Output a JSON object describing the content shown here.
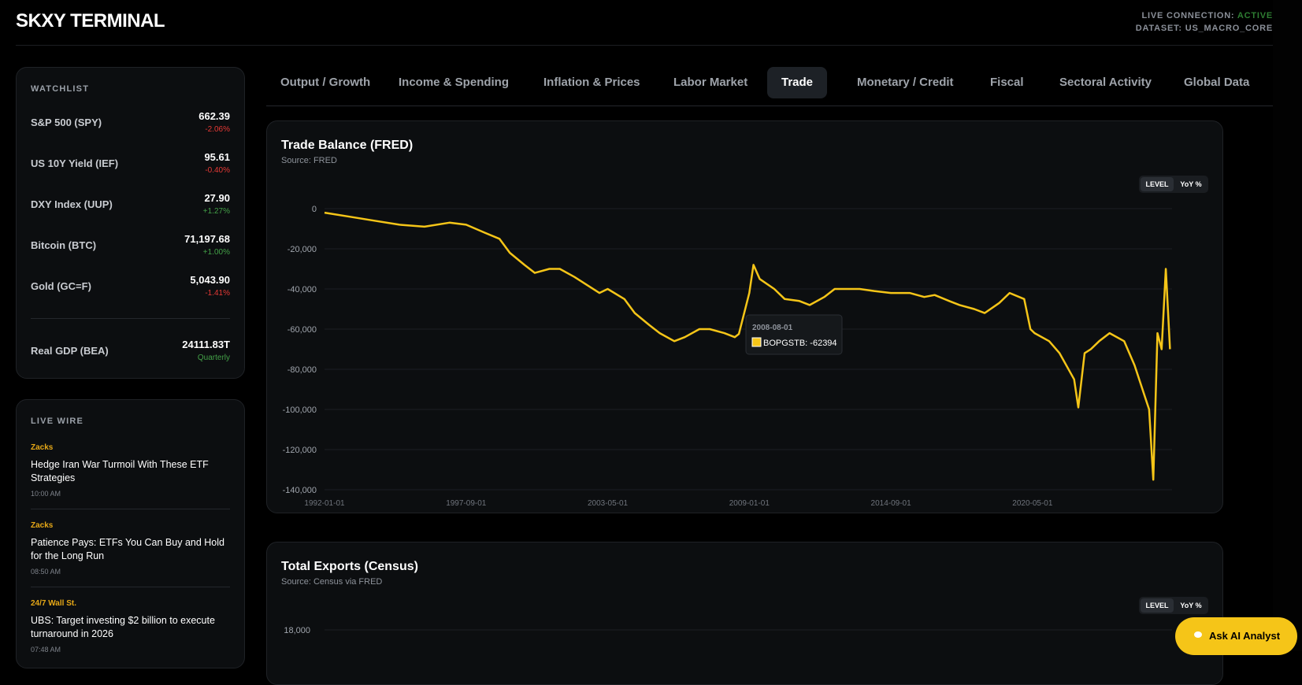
{
  "header": {
    "brand": "SKXY TERMINAL",
    "connection_label": "LIVE CONNECTION:",
    "connection_status": "ACTIVE",
    "dataset": "DATASET: US_MACRO_CORE"
  },
  "watchlist": {
    "title": "WATCHLIST",
    "items": [
      {
        "name": "S&P 500 (SPY)",
        "price": "662.39",
        "change": "-2.06%",
        "dir": "neg"
      },
      {
        "name": "US 10Y Yield (IEF)",
        "price": "95.61",
        "change": "-0.40%",
        "dir": "neg"
      },
      {
        "name": "DXY Index (UUP)",
        "price": "27.90",
        "change": "+1.27%",
        "dir": "pos"
      },
      {
        "name": "Bitcoin (BTC)",
        "price": "71,197.68",
        "change": "+1.00%",
        "dir": "pos"
      },
      {
        "name": "Gold (GC=F)",
        "price": "5,043.90",
        "change": "-1.41%",
        "dir": "neg"
      }
    ],
    "gdp": {
      "name": "Real GDP (BEA)",
      "value": "24111.83T",
      "freq": "Quarterly"
    }
  },
  "livewire": {
    "title": "LIVE WIRE",
    "items": [
      {
        "source": "Zacks",
        "headline": "Hedge Iran War Turmoil With These ETF Strategies",
        "time": "10:00 AM"
      },
      {
        "source": "Zacks",
        "headline": "Patience Pays: ETFs You Can Buy and Hold for the Long Run",
        "time": "08:50 AM"
      },
      {
        "source": "24/7 Wall St.",
        "headline": "UBS: Target investing $2 billion to execute turnaround in 2026",
        "time": "07:48 AM"
      }
    ]
  },
  "tabs": [
    {
      "label": "Output / Growth"
    },
    {
      "label": "Income & Spending"
    },
    {
      "label": "Inflation & Prices"
    },
    {
      "label": "Labor Market"
    },
    {
      "label": "Trade",
      "active": true
    },
    {
      "label": "Monetary / Credit"
    },
    {
      "label": "Fiscal"
    },
    {
      "label": "Sectoral Activity"
    },
    {
      "label": "Global Data"
    }
  ],
  "cards": {
    "trade_balance": {
      "title": "Trade Balance (FRED)",
      "source": "Source: FRED",
      "toggle_level": "LEVEL",
      "toggle_yoy": "YoY %"
    },
    "total_exports": {
      "title": "Total Exports (Census)",
      "source": "Source: Census via FRED",
      "toggle_level": "LEVEL",
      "toggle_yoy": "YoY %"
    }
  },
  "tooltip": {
    "date": "2008-08-01",
    "series": "BOPGSTB",
    "value": "-62394"
  },
  "chart_data": [
    {
      "type": "line",
      "title": "Trade Balance (FRED)",
      "series": [
        {
          "name": "BOPGSTB",
          "color": "#f5c518",
          "x": [
            "1992-01",
            "1993-01",
            "1994-01",
            "1995-01",
            "1996-01",
            "1997-01",
            "1997-09",
            "1998-06",
            "1999-01",
            "1999-06",
            "2000-01",
            "2000-06",
            "2001-01",
            "2001-06",
            "2002-01",
            "2003-01",
            "2003-05",
            "2004-01",
            "2004-06",
            "2005-01",
            "2005-06",
            "2006-01",
            "2006-06",
            "2007-01",
            "2007-06",
            "2008-01",
            "2008-06",
            "2008-08",
            "2009-01",
            "2009-03",
            "2009-06",
            "2010-01",
            "2010-06",
            "2011-01",
            "2011-06",
            "2012-01",
            "2012-06",
            "2013-01",
            "2013-06",
            "2014-01",
            "2014-09",
            "2015-06",
            "2016-01",
            "2016-06",
            "2017-01",
            "2017-06",
            "2018-01",
            "2018-06",
            "2019-01",
            "2019-06",
            "2020-01",
            "2020-04",
            "2020-06",
            "2021-01",
            "2021-06",
            "2022-01",
            "2022-03",
            "2022-06",
            "2022-09",
            "2023-01",
            "2023-06",
            "2024-01",
            "2024-06",
            "2025-01",
            "2025-03",
            "2025-05",
            "2025-07",
            "2025-09",
            "2025-11"
          ],
          "values": [
            -2000,
            -4000,
            -6000,
            -8000,
            -9000,
            -7000,
            -8000,
            -12000,
            -15000,
            -22000,
            -28000,
            -32000,
            -30000,
            -30000,
            -34000,
            -42000,
            -40000,
            -45000,
            -52000,
            -58000,
            -62000,
            -66000,
            -64000,
            -60000,
            -60000,
            -62000,
            -64000,
            -62394,
            -42000,
            -28000,
            -35000,
            -40000,
            -45000,
            -46000,
            -48000,
            -44000,
            -40000,
            -40000,
            -40000,
            -41000,
            -42000,
            -42000,
            -44000,
            -43000,
            -46000,
            -48000,
            -50000,
            -52000,
            -47000,
            -42000,
            -45000,
            -60000,
            -62000,
            -66000,
            -72000,
            -85000,
            -99000,
            -72000,
            -70000,
            -66000,
            -62000,
            -66000,
            -78000,
            -100000,
            -135000,
            -62000,
            -70000,
            -30000,
            -70000
          ]
        }
      ],
      "xlabel": "",
      "ylabel": "",
      "x_ticks": [
        "1992-01-01",
        "1997-09-01",
        "2003-05-01",
        "2009-01-01",
        "2014-09-01",
        "2020-05-01"
      ],
      "y_ticks": [
        "0",
        "-20,000",
        "-40,000",
        "-60,000",
        "-80,000",
        "-100,000",
        "-120,000",
        "-140,000"
      ],
      "ylim": [
        -140000,
        0
      ],
      "grid": true
    },
    {
      "type": "line",
      "title": "Total Exports (Census)",
      "y_ticks": [
        "18,000"
      ]
    }
  ],
  "ask_button": {
    "label": "Ask AI Analyst"
  }
}
